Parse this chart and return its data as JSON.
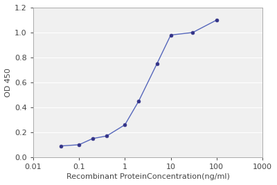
{
  "x": [
    0.04,
    0.1,
    0.2,
    0.4,
    1.0,
    2.0,
    5.0,
    10.0,
    30.0,
    100.0
  ],
  "y": [
    0.09,
    0.1,
    0.15,
    0.17,
    0.26,
    0.45,
    0.75,
    0.98,
    1.0,
    1.1
  ],
  "xlabel": "Recombinant ProteinConcentration(ng/ml)",
  "ylabel": "OD 450",
  "xlim_log": [
    -2,
    3
  ],
  "xlim": [
    0.01,
    1000
  ],
  "ylim": [
    0,
    1.2
  ],
  "yticks": [
    0,
    0.2,
    0.4,
    0.6,
    0.8,
    1.0,
    1.2
  ],
  "xtick_labels": [
    "0.01",
    "0.1",
    "1",
    "10",
    "100",
    "1000"
  ],
  "xtick_vals": [
    0.01,
    0.1,
    1,
    10,
    100,
    1000
  ],
  "line_color": "#5566bb",
  "marker_color": "#333388",
  "bg_color": "#ffffff",
  "plot_bg_color": "#f0f0f0",
  "grid_color": "#ffffff",
  "font_color": "#444444",
  "xlabel_fontsize": 8,
  "ylabel_fontsize": 8,
  "tick_fontsize": 8,
  "figsize": [
    4.0,
    2.67
  ],
  "dpi": 100
}
